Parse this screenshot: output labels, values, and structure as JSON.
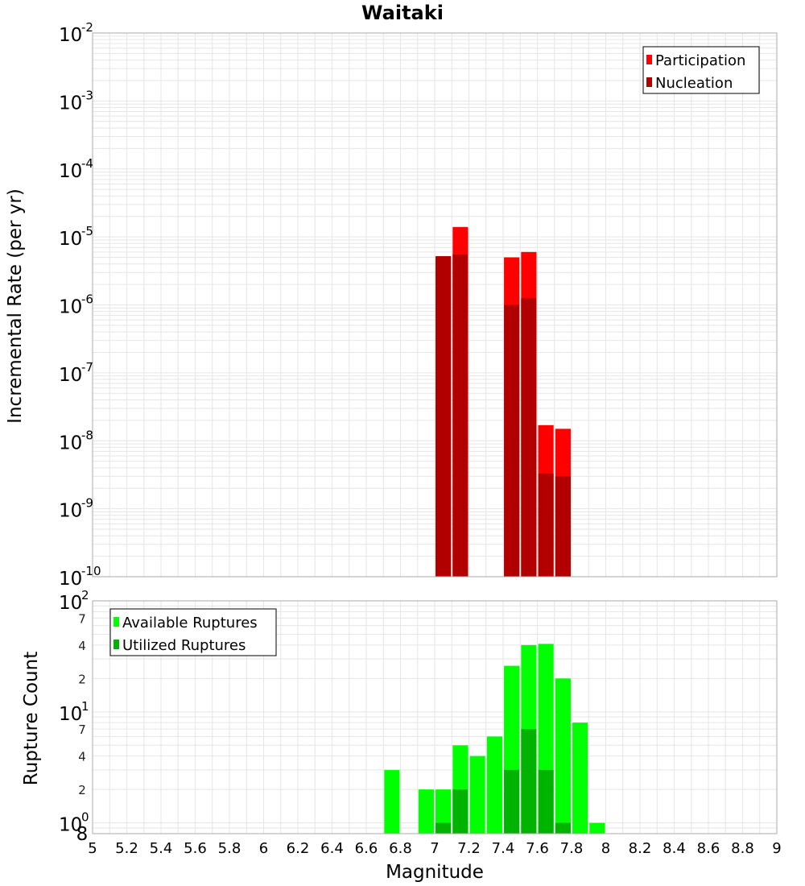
{
  "colors": {
    "participation": "#ff0000",
    "nucleation": "#b20000",
    "available": "#00ff00",
    "utilized": "#00b300",
    "grid": "#e6e6e6",
    "frame": "#aaaaaa"
  },
  "chart_data": {
    "type": "bar",
    "title": "Waitaki",
    "xlabel": "Magnitude",
    "xlim": [
      5,
      9
    ],
    "xticks": [
      "5",
      "5.2",
      "5.4",
      "5.6",
      "5.8",
      "6",
      "6.2",
      "6.4",
      "6.6",
      "6.8",
      "7",
      "7.2",
      "7.4",
      "7.6",
      "7.8",
      "8",
      "8.2",
      "8.4",
      "8.6",
      "8.8",
      "9"
    ],
    "top_panel": {
      "ylabel": "Incremental Rate (per yr)",
      "yscale": "log",
      "ylim": [
        1e-10,
        0.01
      ],
      "ytick_base": "10",
      "ytick_exponents": [
        "-10",
        "-9",
        "-8",
        "-7",
        "-6",
        "-5",
        "-4",
        "-3",
        "-2"
      ],
      "legend_position": "top-right",
      "series": [
        {
          "name": "Participation",
          "x": [
            7.05,
            7.15,
            7.45,
            7.55,
            7.65,
            7.75
          ],
          "values": [
            5.2e-06,
            1.4e-05,
            5e-06,
            6e-06,
            1.7e-08,
            1.5e-08
          ]
        },
        {
          "name": "Nucleation",
          "x": [
            7.05,
            7.15,
            7.45,
            7.55,
            7.65,
            7.75
          ],
          "values": [
            5.2e-06,
            5.5e-06,
            1e-06,
            1.25e-06,
            3.3e-09,
            3e-09
          ]
        }
      ]
    },
    "bottom_panel": {
      "ylabel": "Rupture Count",
      "yscale": "log",
      "ylim": [
        0.8,
        100
      ],
      "ytick_base": "10",
      "major_exponents": [
        "0",
        "1",
        "2"
      ],
      "minor_labels": [
        "8",
        "2",
        "4",
        "7",
        "2",
        "4",
        "7"
      ],
      "legend_position": "top-left",
      "series": [
        {
          "name": "Available Ruptures",
          "x": [
            6.75,
            6.95,
            7.05,
            7.15,
            7.25,
            7.35,
            7.45,
            7.55,
            7.65,
            7.75,
            7.85,
            7.95
          ],
          "values": [
            3,
            2,
            2,
            5,
            4,
            6,
            26,
            40,
            41,
            20,
            8,
            1
          ]
        },
        {
          "name": "Utilized Ruptures",
          "x": [
            7.05,
            7.15,
            7.45,
            7.55,
            7.65,
            7.75
          ],
          "values": [
            1,
            2,
            3,
            7,
            3,
            1
          ]
        }
      ]
    }
  }
}
